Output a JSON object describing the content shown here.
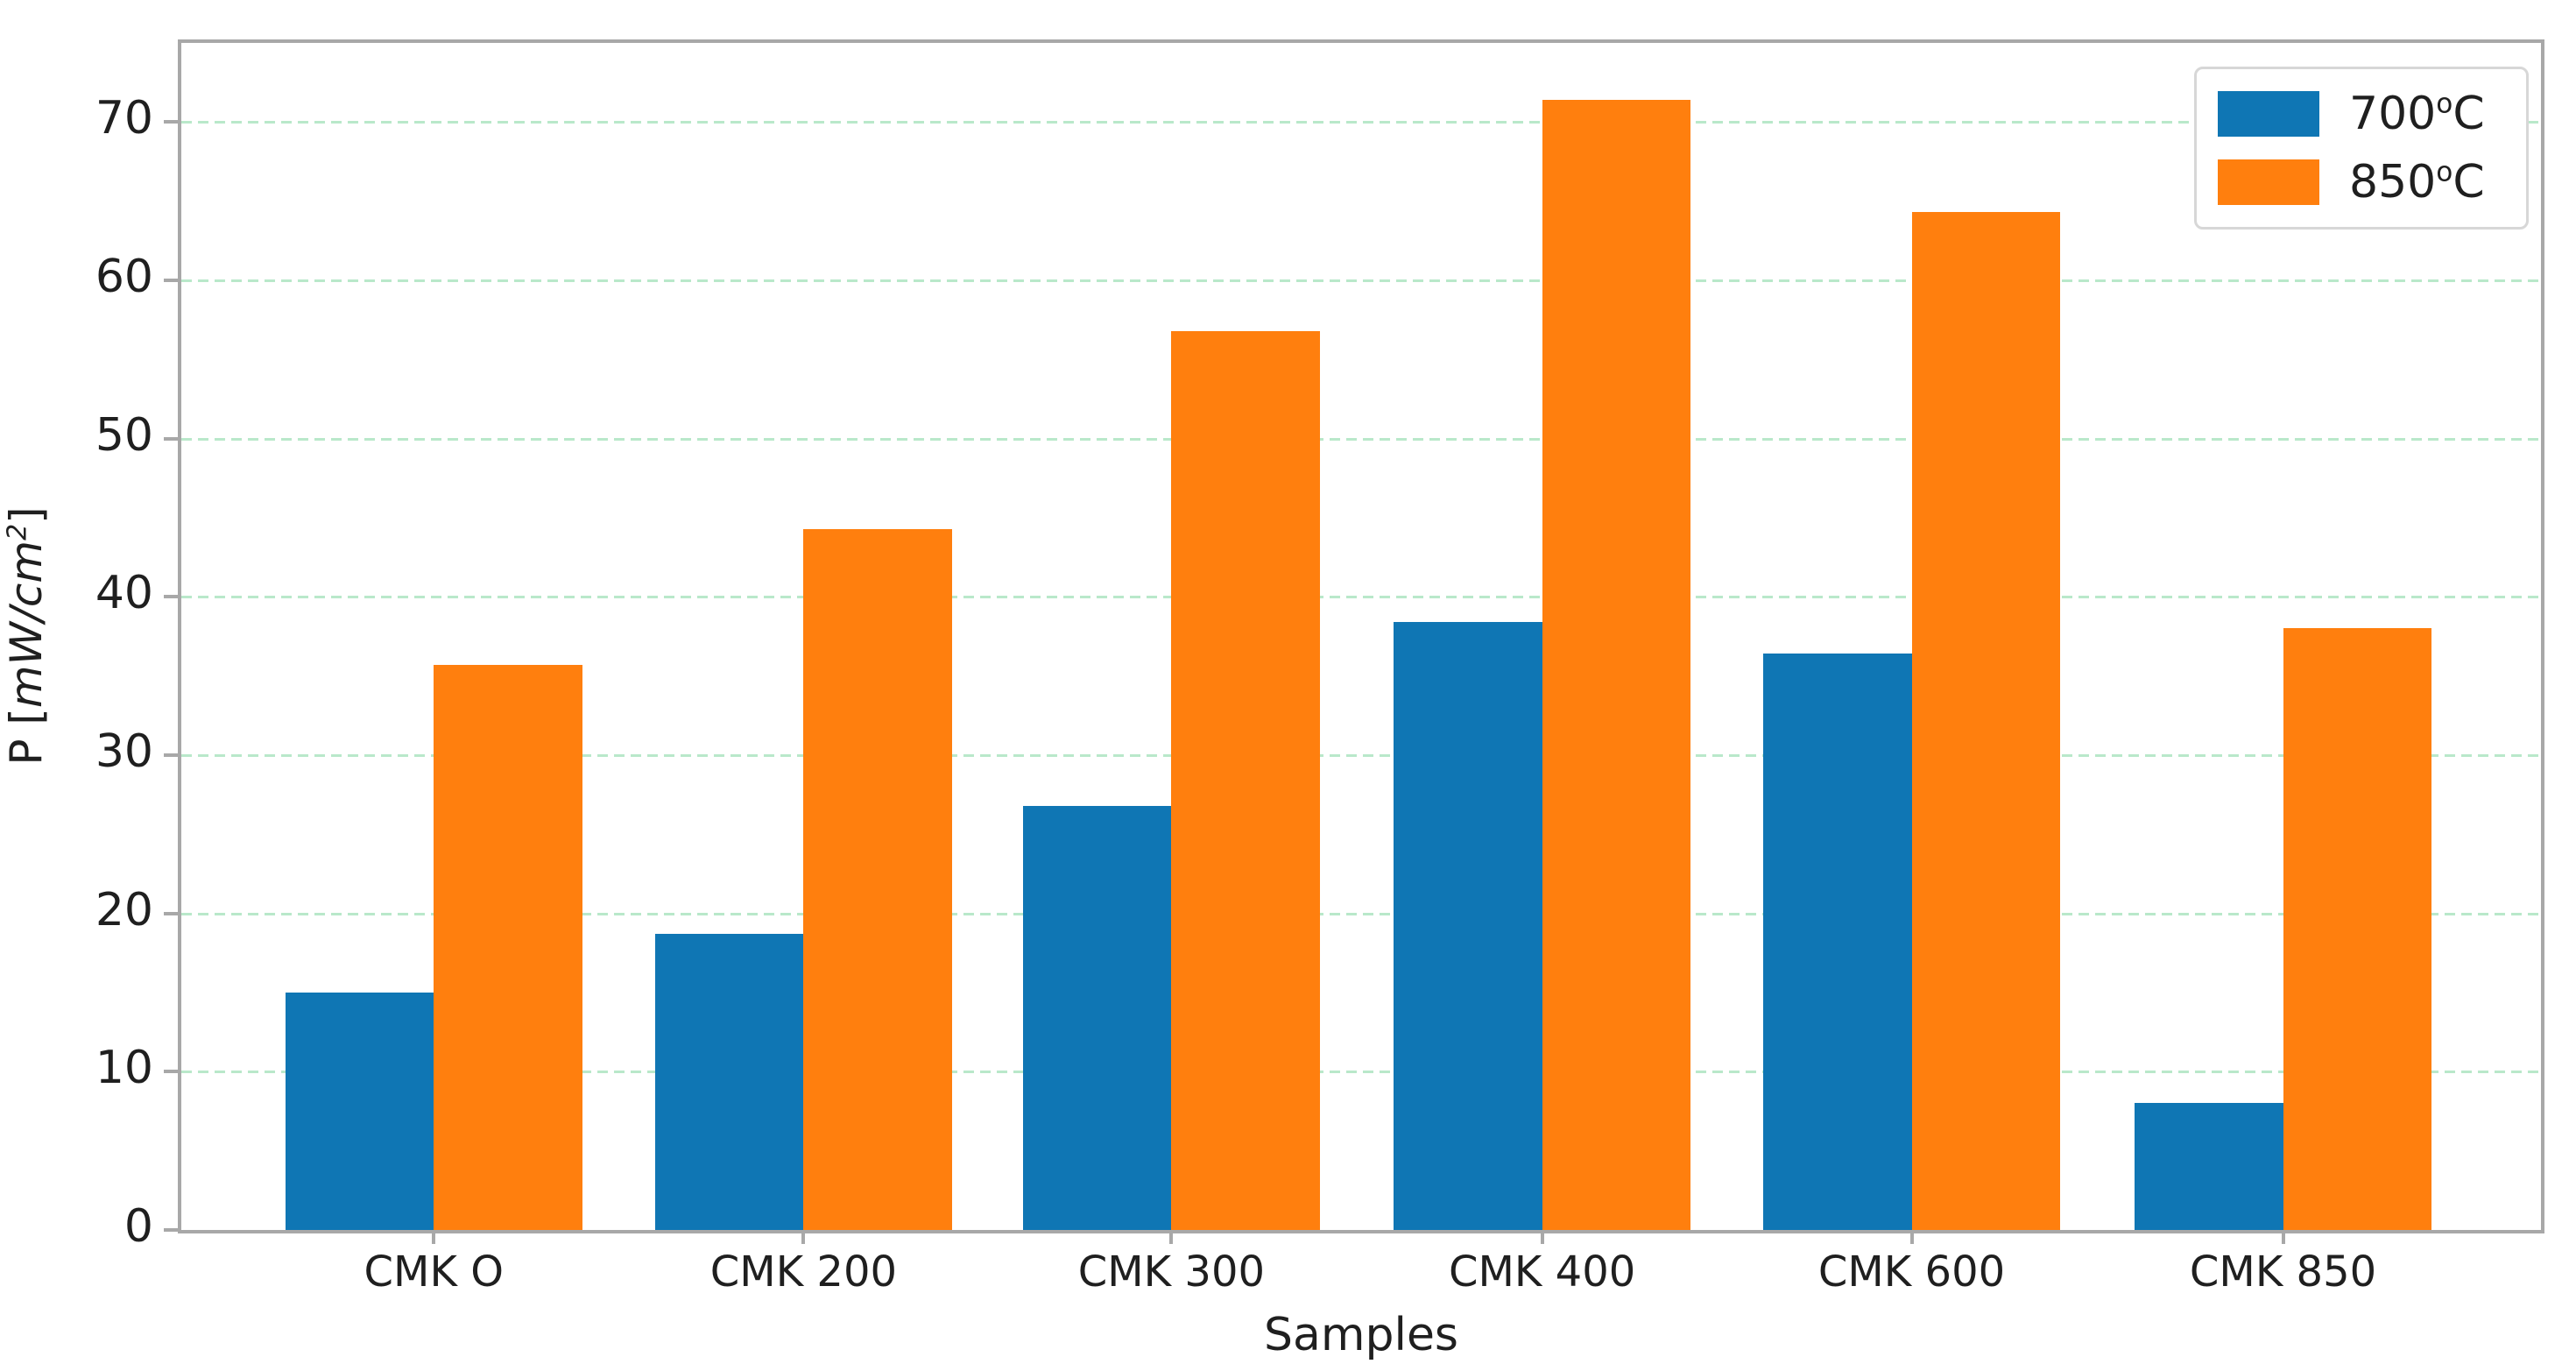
{
  "chart_data": {
    "type": "bar",
    "categories": [
      "CMK O",
      "CMK 200",
      "CMK 300",
      "CMK 400",
      "CMK 600",
      "CMK 850"
    ],
    "series": [
      {
        "name": "700°C",
        "name_parts": {
          "base": "700",
          "sup": "o",
          "unit": "C"
        },
        "color": "#0f76b4",
        "values": [
          15.0,
          18.7,
          26.8,
          38.4,
          36.4,
          8.0
        ]
      },
      {
        "name": "850°C",
        "name_parts": {
          "base": "850",
          "sup": "o",
          "unit": "C"
        },
        "color": "#ff7f0e",
        "values": [
          35.7,
          44.3,
          56.8,
          71.4,
          64.3,
          38.0
        ]
      }
    ],
    "title": "",
    "xlabel": "Samples",
    "ylabel": "P [mW/cm²]",
    "ylabel_parts": {
      "prefix": "P [",
      "unit": "mW/cm",
      "exponent": "2",
      "suffix": "]"
    },
    "yticks": [
      0,
      10,
      20,
      30,
      40,
      50,
      60,
      70
    ],
    "ylim": [
      0,
      75
    ],
    "grid": "horizontal",
    "grid_style": "dotted",
    "grid_color": "#b9e8ca",
    "spine_color": "#a8a8a8",
    "legend_position": "upper right"
  }
}
